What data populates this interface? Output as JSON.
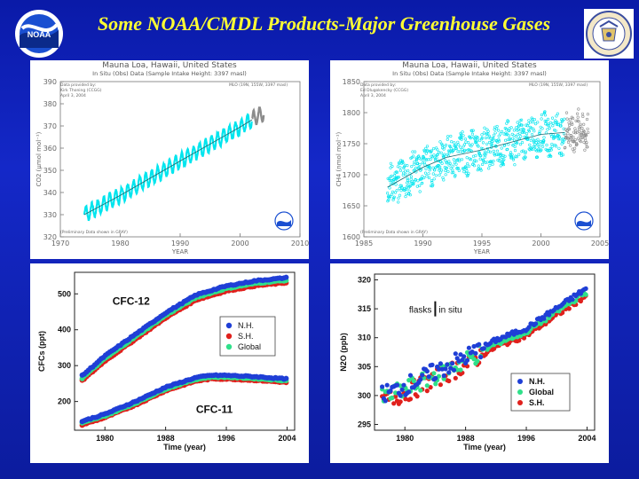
{
  "title": "Some NOAA/CMDL Products-Major Greenhouse Gases",
  "logos": {
    "left": {
      "text": "NOAA",
      "icon": "noaa-logo"
    },
    "right": {
      "icon": "department-of-commerce-seal"
    }
  },
  "colors": {
    "background": "#1428c8",
    "title": "#ffff33",
    "insitu": "#00e5ee",
    "preliminary": "#8c8c8c",
    "nh": "#1f3fd6",
    "sh": "#e0201c",
    "global": "#2fe08a"
  },
  "chart_data": [
    {
      "id": "co2",
      "type": "scatter",
      "station": "Mauna Loa, Hawaii, United States",
      "subtitle": "In Situ (Obs) Data (Sample Intake Height: 3397 masl)",
      "provider": [
        "Data provided by:",
        "Kirk Thoning (CCGG)",
        "April 3, 2004"
      ],
      "site_code": "MLO (19N, 155W, 3397 masl)",
      "note": "(Preliminary Data shown in GRAY)",
      "xlabel": "YEAR",
      "ylabel": "CO2 (µmol mol⁻¹)",
      "xlim": [
        1970,
        2010
      ],
      "ylim": [
        320,
        390
      ],
      "xticks": [
        1970,
        1980,
        1990,
        2000,
        2010
      ],
      "yticks": [
        320,
        330,
        340,
        350,
        360,
        370,
        380,
        390
      ],
      "trend": {
        "x": [
          1974,
          1980,
          1990,
          2000,
          2002
        ],
        "y": [
          330,
          338.7,
          354.2,
          369.5,
          372.8
        ]
      },
      "seasonal_amplitude": 3.3,
      "range_final": [
        1974,
        2002
      ],
      "range_preliminary": [
        2002,
        2004
      ]
    },
    {
      "id": "ch4",
      "type": "scatter",
      "station": "Mauna Loa, Hawaii, United States",
      "subtitle": "In Situ (Obs) Data (Sample Intake Height: 3397 masl)",
      "provider": [
        "Data provided by:",
        "Ed Dlugokencky (CCGG)",
        "April 3, 2004"
      ],
      "site_code": "MLO (19N, 155W, 3397 masl)",
      "note": "(Preliminary Data shown in GRAY)",
      "xlabel": "YEAR",
      "ylabel": "CH4 (nmol mol⁻¹)",
      "xlim": [
        1985,
        2005
      ],
      "ylim": [
        1600,
        1850
      ],
      "xticks": [
        1985,
        1990,
        1995,
        2000,
        2005
      ],
      "yticks": [
        1600,
        1650,
        1700,
        1750,
        1800,
        1850
      ],
      "trend": {
        "x": [
          1987,
          1990,
          1992,
          1995,
          1998,
          2000,
          2002
        ],
        "y": [
          1680,
          1712,
          1728,
          1740,
          1755,
          1765,
          1768
        ]
      },
      "scatter_spread": 30,
      "range_final": [
        1987,
        2002
      ],
      "range_preliminary": [
        2002,
        2004
      ]
    },
    {
      "id": "cfc",
      "type": "scatter",
      "xlabel": "Time (year)",
      "ylabel": "CFCs (ppt)",
      "xlim": [
        1976,
        2005
      ],
      "ylim": [
        120,
        560
      ],
      "xticks": [
        1980,
        1988,
        1996,
        2004
      ],
      "yticks": [
        200,
        300,
        400,
        500
      ],
      "legend": [
        "N.H.",
        "S.H.",
        "Global"
      ],
      "legend_position": "center-right",
      "annotations": [
        {
          "text": "CFC-12",
          "x": 1981,
          "y": 470
        },
        {
          "text": "CFC-11",
          "x": 1992,
          "y": 168
        }
      ],
      "series": [
        {
          "label": "CFC-12",
          "x": [
            1977,
            1980,
            1984,
            1988,
            1992,
            1996,
            2000,
            2004
          ],
          "y": [
            265,
            320,
            380,
            440,
            490,
            515,
            530,
            538
          ]
        },
        {
          "label": "CFC-11",
          "x": [
            1977,
            1980,
            1984,
            1988,
            1992,
            1994,
            1996,
            2000,
            2004
          ],
          "y": [
            140,
            160,
            195,
            235,
            262,
            268,
            268,
            264,
            258
          ]
        }
      ]
    },
    {
      "id": "n2o",
      "type": "scatter",
      "xlabel": "Time (year)",
      "ylabel": "N2O (ppb)",
      "xlim": [
        1976,
        2005
      ],
      "ylim": [
        294,
        321
      ],
      "xticks": [
        1980,
        1988,
        1996,
        2004
      ],
      "yticks": [
        295,
        300,
        305,
        310,
        315,
        320
      ],
      "legend": [
        "N.H.",
        "Global",
        "S.H."
      ],
      "legend_position": "bottom-right",
      "annotation": {
        "left": "flasks",
        "right": "in situ"
      },
      "series": [
        {
          "label": "N2O",
          "x": [
            1977,
            1980,
            1984,
            1988,
            1992,
            1996,
            2000,
            2004
          ],
          "y": [
            299.5,
            301,
            303.5,
            306,
            309,
            311,
            314.5,
            318
          ]
        }
      ]
    }
  ]
}
